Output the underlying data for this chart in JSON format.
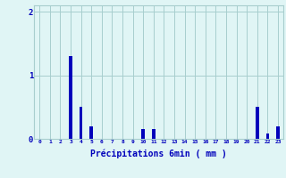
{
  "values": [
    0,
    0,
    0,
    1.3,
    0.5,
    0.2,
    0,
    0,
    0,
    0,
    0.15,
    0.15,
    0,
    0,
    0,
    0,
    0,
    0,
    0,
    0,
    0,
    0.5,
    0.08,
    0.2
  ],
  "xlabel": "Précipitations 6min ( mm )",
  "ylim": [
    0,
    2.1
  ],
  "yticks": [
    0,
    1,
    2
  ],
  "ytick_labels": [
    "0",
    "1",
    "2"
  ],
  "bar_color": "#0000bb",
  "background_color": "#e0f5f5",
  "grid_color": "#a8cece",
  "tick_color": "#0000bb",
  "label_color": "#0000bb",
  "num_bars": 24,
  "bar_width": 0.3
}
